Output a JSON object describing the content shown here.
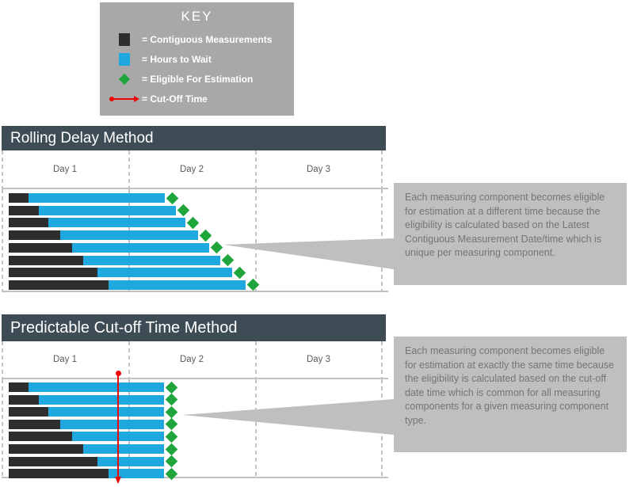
{
  "colors": {
    "key_box_bg": "#A8A8A8",
    "callout_bg": "#BFBFBF",
    "callout_text": "#757575",
    "header_bg": "#3D4C55",
    "header_text": "#FFFFFF",
    "bar_black": "#2E2E2E",
    "bar_blue": "#1FA7DF",
    "diamond_green": "#1EA63C",
    "cutoff_red": "#EE0505",
    "grid_gray": "#C2C2C2",
    "day_label_text": "#595959"
  },
  "key": {
    "title": "KEY",
    "items": [
      {
        "icon": "contiguous-measurements-swatch",
        "shape": "black-square",
        "label": "= Contiguous Measurements"
      },
      {
        "icon": "hours-to-wait-swatch",
        "shape": "blue-square",
        "label": "= Hours to Wait"
      },
      {
        "icon": "eligible-for-estimation-diamond",
        "shape": "green-diamond",
        "label": "= Eligible For Estimation"
      },
      {
        "icon": "cut-off-time-arrow",
        "shape": "red-arrow",
        "label": "= Cut-Off Time"
      }
    ]
  },
  "sections": [
    {
      "title": "Rolling Delay Method",
      "days": [
        "Day 1",
        "Day 2",
        "Day 3"
      ],
      "bars": [
        {
          "black": 25,
          "blue": 172
        },
        {
          "black": 38,
          "blue": 173
        },
        {
          "black": 50,
          "blue": 173
        },
        {
          "black": 65,
          "blue": 174
        },
        {
          "black": 80,
          "blue": 173
        },
        {
          "black": 94,
          "blue": 173
        },
        {
          "black": 112,
          "blue": 170
        },
        {
          "black": 126,
          "blue": 173
        }
      ],
      "has_cutoff_line": false,
      "callout": "Each measuring component becomes eligible for estimation at a different time because the eligibility is calculated based on the Latest Contiguous Measurement Date/time which is unique per measuring component."
    },
    {
      "title": "Predictable Cut-off Time Method",
      "days": [
        "Day 1",
        "Day 2",
        "Day 3"
      ],
      "bars": [
        {
          "black": 25,
          "blue": 171
        },
        {
          "black": 38,
          "blue": 158
        },
        {
          "black": 50,
          "blue": 146
        },
        {
          "black": 65,
          "blue": 131
        },
        {
          "black": 80,
          "blue": 116
        },
        {
          "black": 94,
          "blue": 102
        },
        {
          "black": 112,
          "blue": 84
        },
        {
          "black": 126,
          "blue": 70
        }
      ],
      "has_cutoff_line": true,
      "callout": "Each measuring component becomes eligible for estimation at exactly the same time because the eligibility is calculated based on the cut-off date time which is common for all measuring components for a given measuring component type."
    }
  ]
}
